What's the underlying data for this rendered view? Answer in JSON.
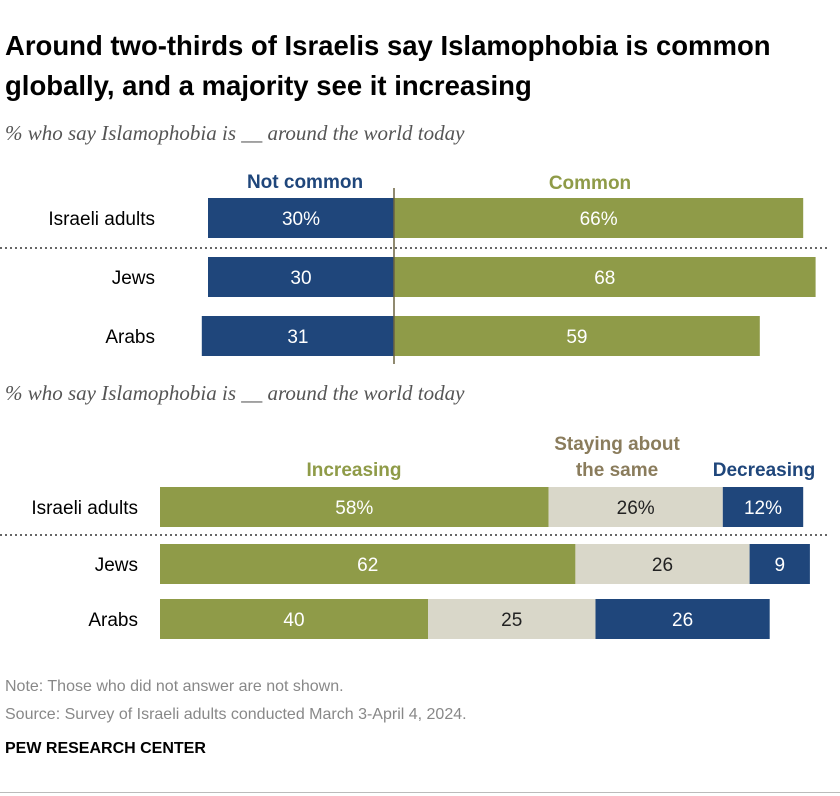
{
  "title": "Around two-thirds of Israelis say Islamophobia is common globally, and a majority see it increasing",
  "footer": {
    "note": "Note: Those who did not answer are not shown.",
    "source": "Source: Survey of Israeli adults conducted March 3-April 4, 2024.",
    "brand": "PEW RESEARCH CENTER"
  },
  "colors": {
    "navy": "#1f467b",
    "olive": "#8f9b48",
    "beige": "#d9d7c9",
    "navy_text": "#1f467b",
    "olive_text": "#8f9b48",
    "beige_text": "#8a7c5c"
  },
  "chart_data": [
    {
      "type": "bar",
      "subtitle": "% who say Islamophobia is __ around the world today",
      "categories": [
        "Israeli adults",
        "Jews",
        "Arabs"
      ],
      "series": [
        {
          "name": "Not common",
          "values": [
            30,
            30,
            31
          ],
          "labels": [
            "30%",
            "30",
            "31"
          ]
        },
        {
          "name": "Common",
          "values": [
            66,
            68,
            59
          ],
          "labels": [
            "66%",
            "68",
            "59"
          ]
        }
      ]
    },
    {
      "type": "bar",
      "subtitle": "% who say Islamophobia is __ around the world today",
      "categories": [
        "Israeli adults",
        "Jews",
        "Arabs"
      ],
      "series": [
        {
          "name": "Increasing",
          "values": [
            58,
            62,
            40
          ],
          "labels": [
            "58%",
            "62",
            "40"
          ]
        },
        {
          "name": "Staying about the same",
          "values": [
            26,
            26,
            25
          ],
          "labels": [
            "26%",
            "26",
            "25"
          ]
        },
        {
          "name": "Decreasing",
          "values": [
            12,
            9,
            26
          ],
          "labels": [
            "12%",
            "9",
            "26"
          ]
        }
      ]
    }
  ]
}
